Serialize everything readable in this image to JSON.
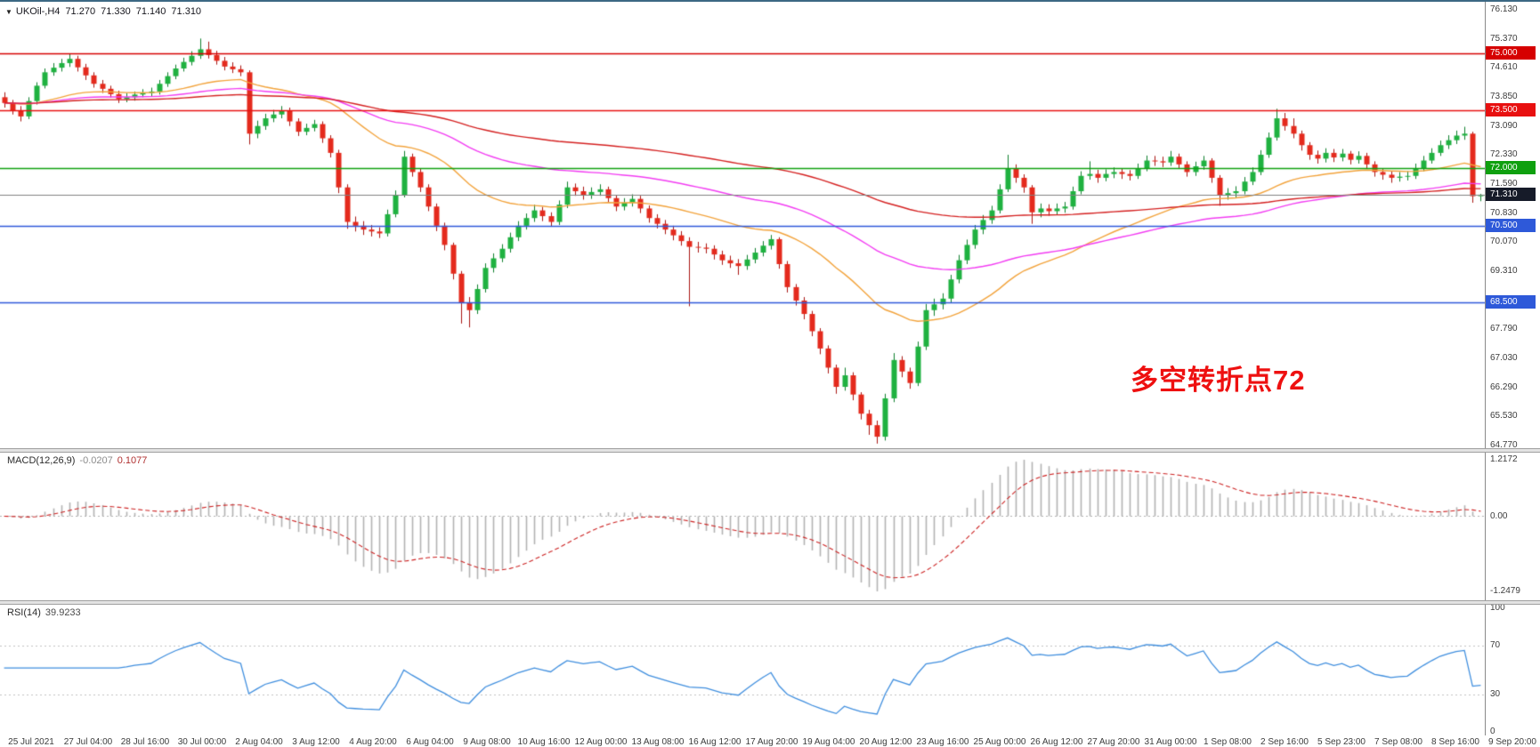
{
  "symbol_bar": {
    "collapse_marker": "▼",
    "title": "UKOil-,H4",
    "open": "71.270",
    "high": "71.330",
    "low": "71.140",
    "close": "71.310"
  },
  "macd_pane": {
    "label": "MACD(12,26,9)",
    "main_value": "-0.0207",
    "signal_value": "0.1077"
  },
  "rsi_pane": {
    "label": "RSI(14)",
    "value": "39.9233"
  },
  "chart_data": {
    "type": "candlestick",
    "symbol": "UKOil-",
    "timeframe": "H4",
    "up_color": "#1fb140",
    "down_color": "#e42a1d",
    "wick_up_color": "#0e7f2c",
    "wick_down_color": "#a81410",
    "price_axis": {
      "max": 76.13,
      "min": 64.77,
      "tick_labels": [
        "76.130",
        "75.370",
        "74.610",
        "73.850",
        "73.090",
        "72.330",
        "71.590",
        "70.830",
        "70.070",
        "69.310",
        "68.550",
        "67.790",
        "67.030",
        "66.290",
        "65.530",
        "64.770"
      ]
    },
    "time_labels": [
      "25 Jul 2021",
      "27 Jul 04:00",
      "28 Jul 16:00",
      "30 Jul 00:00",
      "2 Aug 04:00",
      "3 Aug 12:00",
      "4 Aug 20:00",
      "6 Aug 04:00",
      "9 Aug 08:00",
      "10 Aug 16:00",
      "12 Aug 00:00",
      "13 Aug 08:00",
      "16 Aug 12:00",
      "17 Aug 20:00",
      "19 Aug 04:00",
      "20 Aug 12:00",
      "23 Aug 16:00",
      "25 Aug 00:00",
      "26 Aug 12:00",
      "27 Aug 20:00",
      "31 Aug 00:00",
      "1 Sep 08:00",
      "2 Sep 16:00",
      "5 Sep 23:00",
      "7 Sep 08:00",
      "8 Sep 16:00",
      "9 Sep 20:00"
    ],
    "horizontal_levels": [
      {
        "value": 75.0,
        "label": "75.000",
        "color": "#d60000"
      },
      {
        "value": 73.5,
        "label": "73.500",
        "color": "#e81010"
      },
      {
        "value": 72.0,
        "label": "72.000",
        "color": "#0fa00f"
      },
      {
        "value": 70.5,
        "label": "70.500",
        "color": "#2e59d9"
      },
      {
        "value": 68.5,
        "label": "68.500",
        "color": "#2e59d9"
      }
    ],
    "current_price": {
      "value": 71.31,
      "label": "71.310",
      "line_color": "#808080",
      "badge_color": "#161b29"
    },
    "annotation": {
      "text": "多空转折点72",
      "color": "#ee1010"
    },
    "moving_averages": [
      {
        "name": "fast-ma",
        "period": 34,
        "color": "#f2a33c"
      },
      {
        "name": "medium-ma",
        "period": 72,
        "color": "#f23cf2"
      },
      {
        "name": "slow-ma",
        "period": 144,
        "color": "#d42020"
      }
    ],
    "indicators": [
      {
        "name": "MACD",
        "params": "12,26,9",
        "histogram_color": "#b3b3b3",
        "signal_color": "#cc2222",
        "signal_style": "dashed",
        "axis_labels": [
          "1.2172",
          "0.00",
          "-1.2479"
        ]
      },
      {
        "name": "RSI",
        "params": "14",
        "line_color": "#3f8ede",
        "guide_levels": [
          70,
          30
        ],
        "axis_labels": [
          "100",
          "70",
          "30",
          "0"
        ]
      }
    ],
    "candles": [
      [
        73.85,
        73.98,
        73.58,
        73.7
      ],
      [
        73.7,
        73.78,
        73.4,
        73.5
      ],
      [
        73.5,
        73.62,
        73.22,
        73.35
      ],
      [
        73.35,
        73.85,
        73.28,
        73.75
      ],
      [
        73.75,
        74.24,
        73.66,
        74.15
      ],
      [
        74.15,
        74.6,
        74.08,
        74.5
      ],
      [
        74.5,
        74.74,
        74.41,
        74.62
      ],
      [
        74.62,
        74.85,
        74.52,
        74.74
      ],
      [
        74.74,
        74.98,
        74.64,
        74.85
      ],
      [
        74.85,
        74.93,
        74.52,
        74.63
      ],
      [
        74.63,
        74.72,
        74.3,
        74.42
      ],
      [
        74.42,
        74.5,
        74.1,
        74.2
      ],
      [
        74.2,
        74.3,
        73.96,
        74.07
      ],
      [
        74.07,
        74.15,
        73.84,
        73.93
      ],
      [
        73.93,
        74.02,
        73.7,
        73.8
      ],
      [
        73.8,
        73.96,
        73.72,
        73.85
      ],
      [
        73.85,
        74.0,
        73.76,
        73.92
      ],
      [
        73.92,
        74.06,
        73.85,
        73.96
      ],
      [
        73.96,
        74.1,
        73.88,
        74.0
      ],
      [
        74.0,
        74.3,
        73.92,
        74.2
      ],
      [
        74.2,
        74.5,
        74.12,
        74.4
      ],
      [
        74.4,
        74.7,
        74.32,
        74.6
      ],
      [
        74.6,
        74.88,
        74.52,
        74.77
      ],
      [
        74.77,
        75.05,
        74.68,
        74.93
      ],
      [
        74.93,
        75.38,
        74.85,
        75.1
      ],
      [
        75.1,
        75.3,
        74.86,
        74.95
      ],
      [
        74.95,
        75.06,
        74.7,
        74.8
      ],
      [
        74.8,
        74.9,
        74.55,
        74.65
      ],
      [
        74.65,
        74.76,
        74.48,
        74.58
      ],
      [
        74.58,
        74.68,
        74.4,
        74.5
      ],
      [
        74.5,
        74.55,
        72.62,
        72.9
      ],
      [
        72.9,
        73.24,
        72.78,
        73.1
      ],
      [
        73.1,
        73.42,
        73.0,
        73.3
      ],
      [
        73.3,
        73.52,
        73.2,
        73.4
      ],
      [
        73.4,
        73.62,
        73.3,
        73.5
      ],
      [
        73.5,
        73.58,
        73.1,
        73.22
      ],
      [
        73.22,
        73.3,
        72.84,
        72.95
      ],
      [
        72.95,
        73.16,
        72.86,
        73.05
      ],
      [
        73.05,
        73.26,
        72.96,
        73.15
      ],
      [
        73.15,
        73.22,
        72.66,
        72.78
      ],
      [
        72.78,
        72.86,
        72.28,
        72.4
      ],
      [
        72.4,
        72.48,
        71.35,
        71.5
      ],
      [
        71.5,
        71.58,
        70.42,
        70.6
      ],
      [
        70.6,
        70.74,
        70.35,
        70.5
      ],
      [
        70.5,
        70.62,
        70.26,
        70.4
      ],
      [
        70.4,
        70.52,
        70.22,
        70.35
      ],
      [
        70.35,
        70.46,
        70.18,
        70.3
      ],
      [
        70.3,
        70.92,
        70.22,
        70.8
      ],
      [
        70.8,
        71.42,
        70.72,
        71.3
      ],
      [
        71.3,
        72.45,
        71.24,
        72.3
      ],
      [
        72.3,
        72.38,
        71.78,
        71.9
      ],
      [
        71.9,
        71.98,
        71.38,
        71.5
      ],
      [
        71.5,
        71.58,
        70.88,
        71.0
      ],
      [
        71.0,
        71.08,
        70.36,
        70.5
      ],
      [
        70.5,
        70.58,
        69.86,
        70.0
      ],
      [
        70.0,
        70.06,
        69.1,
        69.25
      ],
      [
        69.25,
        69.32,
        67.95,
        68.5
      ],
      [
        68.5,
        68.64,
        67.85,
        68.3
      ],
      [
        68.3,
        68.97,
        68.2,
        68.85
      ],
      [
        68.85,
        69.52,
        68.76,
        69.4
      ],
      [
        69.4,
        69.78,
        69.28,
        69.65
      ],
      [
        69.65,
        70.02,
        69.55,
        69.9
      ],
      [
        69.9,
        70.32,
        69.8,
        70.2
      ],
      [
        70.2,
        70.62,
        70.1,
        70.5
      ],
      [
        70.5,
        70.82,
        70.4,
        70.7
      ],
      [
        70.7,
        71.05,
        70.6,
        70.9
      ],
      [
        70.9,
        70.99,
        70.62,
        70.75
      ],
      [
        70.75,
        70.85,
        70.48,
        70.6
      ],
      [
        70.6,
        71.16,
        70.52,
        71.05
      ],
      [
        71.05,
        71.65,
        70.96,
        71.5
      ],
      [
        71.5,
        71.6,
        71.28,
        71.4
      ],
      [
        71.4,
        71.52,
        71.18,
        71.3
      ],
      [
        71.3,
        71.5,
        71.2,
        71.38
      ],
      [
        71.38,
        71.58,
        71.28,
        71.45
      ],
      [
        71.45,
        71.52,
        71.1,
        71.22
      ],
      [
        71.22,
        71.3,
        70.88,
        71.0
      ],
      [
        71.0,
        71.22,
        70.9,
        71.1
      ],
      [
        71.1,
        71.32,
        71.0,
        71.2
      ],
      [
        71.2,
        71.28,
        70.83,
        70.95
      ],
      [
        70.95,
        71.03,
        70.58,
        70.7
      ],
      [
        70.7,
        70.8,
        70.43,
        70.55
      ],
      [
        70.55,
        70.65,
        70.28,
        70.4
      ],
      [
        70.4,
        70.5,
        70.12,
        70.25
      ],
      [
        70.25,
        70.36,
        69.98,
        70.1
      ],
      [
        70.1,
        70.2,
        68.4,
        69.95
      ],
      [
        69.95,
        70.08,
        69.8,
        69.93
      ],
      [
        69.93,
        70.04,
        69.78,
        69.9
      ],
      [
        69.9,
        69.99,
        69.62,
        69.75
      ],
      [
        69.75,
        69.85,
        69.48,
        69.6
      ],
      [
        69.6,
        69.72,
        69.4,
        69.52
      ],
      [
        69.52,
        69.63,
        69.22,
        69.45
      ],
      [
        69.45,
        69.74,
        69.35,
        69.62
      ],
      [
        69.62,
        69.92,
        69.52,
        69.8
      ],
      [
        69.8,
        70.1,
        69.7,
        69.98
      ],
      [
        69.98,
        70.26,
        69.88,
        70.15
      ],
      [
        70.15,
        70.2,
        69.38,
        69.5
      ],
      [
        69.5,
        69.58,
        68.76,
        68.9
      ],
      [
        68.9,
        68.98,
        68.42,
        68.55
      ],
      [
        68.55,
        68.64,
        68.06,
        68.2
      ],
      [
        68.2,
        68.28,
        67.62,
        67.75
      ],
      [
        67.75,
        67.83,
        67.15,
        67.3
      ],
      [
        67.3,
        67.38,
        66.65,
        66.8
      ],
      [
        66.8,
        66.88,
        66.12,
        66.3
      ],
      [
        66.3,
        66.8,
        66.2,
        66.6
      ],
      [
        66.6,
        66.68,
        65.95,
        66.1
      ],
      [
        66.1,
        66.16,
        65.45,
        65.6
      ],
      [
        65.6,
        65.7,
        65.05,
        65.3
      ],
      [
        65.3,
        65.42,
        64.82,
        65.0
      ],
      [
        65.0,
        66.12,
        64.9,
        66.0
      ],
      [
        66.0,
        67.18,
        65.9,
        67.0
      ],
      [
        67.0,
        67.1,
        66.55,
        66.7
      ],
      [
        66.7,
        66.8,
        66.25,
        66.4
      ],
      [
        66.4,
        67.48,
        66.32,
        67.35
      ],
      [
        67.35,
        68.46,
        67.26,
        68.3
      ],
      [
        68.3,
        68.6,
        68.15,
        68.45
      ],
      [
        68.45,
        68.74,
        68.32,
        68.6
      ],
      [
        68.6,
        69.22,
        68.5,
        69.1
      ],
      [
        69.1,
        69.74,
        69.0,
        69.6
      ],
      [
        69.6,
        70.14,
        69.5,
        70.0
      ],
      [
        70.0,
        70.52,
        69.9,
        70.4
      ],
      [
        70.4,
        70.78,
        70.28,
        70.65
      ],
      [
        70.65,
        71.02,
        70.55,
        70.9
      ],
      [
        70.9,
        71.58,
        70.82,
        71.45
      ],
      [
        71.45,
        72.35,
        71.38,
        72.0
      ],
      [
        72.0,
        72.1,
        71.62,
        71.75
      ],
      [
        71.75,
        71.84,
        71.36,
        71.5
      ],
      [
        71.5,
        71.56,
        70.55,
        70.85
      ],
      [
        70.85,
        71.08,
        70.72,
        70.95
      ],
      [
        70.95,
        71.06,
        70.76,
        70.88
      ],
      [
        70.88,
        71.08,
        70.78,
        70.95
      ],
      [
        70.95,
        71.12,
        70.84,
        71.0
      ],
      [
        71.0,
        71.52,
        70.92,
        71.4
      ],
      [
        71.4,
        71.92,
        71.32,
        71.8
      ],
      [
        71.8,
        72.18,
        71.7,
        71.85
      ],
      [
        71.85,
        71.96,
        71.62,
        71.75
      ],
      [
        71.75,
        71.97,
        71.66,
        71.85
      ],
      [
        71.85,
        72.02,
        71.74,
        71.9
      ],
      [
        71.9,
        72.0,
        71.72,
        71.85
      ],
      [
        71.85,
        71.95,
        71.68,
        71.8
      ],
      [
        71.8,
        72.12,
        71.72,
        72.0
      ],
      [
        72.0,
        72.33,
        71.92,
        72.2
      ],
      [
        72.2,
        72.32,
        72.06,
        72.18
      ],
      [
        72.18,
        72.3,
        72.03,
        72.15
      ],
      [
        72.15,
        72.45,
        72.06,
        72.3
      ],
      [
        72.3,
        72.38,
        71.98,
        72.1
      ],
      [
        72.1,
        72.18,
        71.78,
        71.9
      ],
      [
        71.9,
        72.17,
        71.8,
        72.05
      ],
      [
        72.05,
        72.32,
        71.96,
        72.2
      ],
      [
        72.2,
        72.26,
        71.62,
        71.75
      ],
      [
        71.75,
        71.82,
        71.02,
        71.3
      ],
      [
        71.3,
        71.48,
        71.18,
        71.35
      ],
      [
        71.35,
        71.53,
        71.24,
        71.4
      ],
      [
        71.4,
        71.77,
        71.32,
        71.65
      ],
      [
        71.65,
        72.02,
        71.56,
        71.9
      ],
      [
        71.9,
        72.47,
        71.82,
        72.35
      ],
      [
        72.35,
        72.93,
        72.27,
        72.8
      ],
      [
        72.8,
        73.55,
        72.72,
        73.3
      ],
      [
        73.3,
        73.44,
        72.98,
        73.1
      ],
      [
        73.1,
        73.3,
        72.78,
        72.9
      ],
      [
        72.9,
        72.98,
        72.46,
        72.6
      ],
      [
        72.6,
        72.68,
        72.22,
        72.35
      ],
      [
        72.35,
        72.46,
        72.12,
        72.25
      ],
      [
        72.25,
        72.52,
        72.15,
        72.4
      ],
      [
        72.4,
        72.5,
        72.16,
        72.28
      ],
      [
        72.28,
        72.5,
        72.18,
        72.38
      ],
      [
        72.38,
        72.45,
        72.1,
        72.22
      ],
      [
        72.22,
        72.44,
        72.12,
        72.32
      ],
      [
        72.32,
        72.4,
        71.98,
        72.1
      ],
      [
        72.1,
        72.18,
        71.78,
        71.9
      ],
      [
        71.9,
        72.0,
        71.7,
        71.83
      ],
      [
        71.83,
        71.93,
        71.62,
        71.75
      ],
      [
        71.75,
        71.9,
        71.65,
        71.78
      ],
      [
        71.78,
        71.92,
        71.68,
        71.8
      ],
      [
        71.8,
        72.12,
        71.72,
        72.0
      ],
      [
        72.0,
        72.32,
        71.92,
        72.2
      ],
      [
        72.2,
        72.52,
        72.12,
        72.4
      ],
      [
        72.4,
        72.72,
        72.32,
        72.6
      ],
      [
        72.6,
        72.86,
        72.5,
        72.73
      ],
      [
        72.73,
        72.98,
        72.63,
        72.85
      ],
      [
        72.85,
        73.08,
        72.74,
        72.9
      ],
      [
        72.9,
        72.95,
        71.1,
        71.27
      ],
      [
        71.27,
        71.33,
        71.14,
        71.31
      ]
    ]
  }
}
